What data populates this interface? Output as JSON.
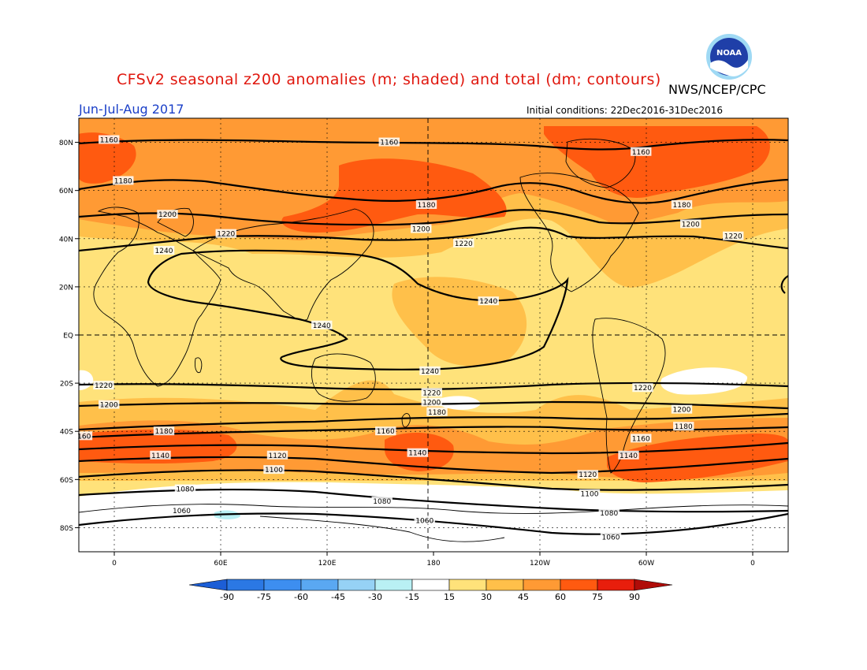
{
  "header": {
    "title": "CFSv2 seasonal z200 anomalies (m; shaded) and total (dm; contours)",
    "agency": "NWS/NCEP/CPC",
    "season": "Jun-Jul-Aug 2017",
    "initial_conditions": "Initial conditions: 22Dec2016-31Dec2016",
    "logo_text": "NOAA"
  },
  "map": {
    "lat_labels": [
      "80N",
      "60N",
      "40N",
      "20N",
      "EQ",
      "20S",
      "40S",
      "60S",
      "80S"
    ],
    "lat_values": [
      80,
      60,
      40,
      20,
      0,
      -20,
      -40,
      -60,
      -80
    ],
    "lon_labels": [
      "0",
      "60E",
      "120E",
      "180",
      "120W",
      "60W",
      "0"
    ],
    "lon_values": [
      0,
      60,
      120,
      180,
      240,
      300,
      360
    ],
    "lon_range": [
      -20,
      380
    ],
    "lat_range": [
      -90,
      90
    ],
    "contour_labels": [
      {
        "text": "1160",
        "lon": -3,
        "lat": 81
      },
      {
        "text": "1160",
        "lon": 155,
        "lat": 80
      },
      {
        "text": "1160",
        "lon": 297,
        "lat": 76
      },
      {
        "text": "1180",
        "lon": 5,
        "lat": 64
      },
      {
        "text": "1180",
        "lon": 176,
        "lat": 54
      },
      {
        "text": "1180",
        "lon": 320,
        "lat": 54
      },
      {
        "text": "1200",
        "lon": 30,
        "lat": 50
      },
      {
        "text": "1200",
        "lon": 173,
        "lat": 44
      },
      {
        "text": "1200",
        "lon": 325,
        "lat": 46
      },
      {
        "text": "1220",
        "lon": 63,
        "lat": 42
      },
      {
        "text": "1220",
        "lon": 197,
        "lat": 38
      },
      {
        "text": "1220",
        "lon": 349,
        "lat": 41
      },
      {
        "text": "1240",
        "lon": 28,
        "lat": 35
      },
      {
        "text": "1240",
        "lon": 211,
        "lat": 14
      },
      {
        "text": "1240",
        "lon": 117,
        "lat": 4
      },
      {
        "text": "1240",
        "lon": 178,
        "lat": -15
      },
      {
        "text": "1220",
        "lon": -6,
        "lat": -21
      },
      {
        "text": "1220",
        "lon": 179,
        "lat": -24
      },
      {
        "text": "1220",
        "lon": 298,
        "lat": -22
      },
      {
        "text": "1200",
        "lon": -3,
        "lat": -29
      },
      {
        "text": "1200",
        "lon": 179,
        "lat": -28
      },
      {
        "text": "1200",
        "lon": 320,
        "lat": -31
      },
      {
        "text": "1180",
        "lon": 182,
        "lat": -32
      },
      {
        "text": "1180",
        "lon": 28,
        "lat": -40
      },
      {
        "text": "1180",
        "lon": 321,
        "lat": -38
      },
      {
        "text": "1160",
        "lon": 153,
        "lat": -40
      },
      {
        "text": "1160",
        "lon": 297,
        "lat": -43
      },
      {
        "text": "160",
        "lon": -17,
        "lat": -42
      },
      {
        "text": "1140",
        "lon": 26,
        "lat": -50
      },
      {
        "text": "1140",
        "lon": 171,
        "lat": -49
      },
      {
        "text": "1140",
        "lon": 290,
        "lat": -50
      },
      {
        "text": "1120",
        "lon": 92,
        "lat": -50
      },
      {
        "text": "1120",
        "lon": 267,
        "lat": -58
      },
      {
        "text": "1100",
        "lon": 90,
        "lat": -56
      },
      {
        "text": "1100",
        "lon": 268,
        "lat": -66
      },
      {
        "text": "1080",
        "lon": 40,
        "lat": -64
      },
      {
        "text": "1080",
        "lon": 151,
        "lat": -69
      },
      {
        "text": "1080",
        "lon": 279,
        "lat": -74
      },
      {
        "text": "1060",
        "lon": 38,
        "lat": -73
      },
      {
        "text": "1060",
        "lon": 175,
        "lat": -77
      },
      {
        "text": "1060",
        "lon": 280,
        "lat": -84
      }
    ]
  },
  "colorbar": {
    "labels": [
      "-90",
      "-75",
      "-60",
      "-45",
      "-30",
      "-15",
      "15",
      "30",
      "45",
      "60",
      "75",
      "90"
    ],
    "colors": [
      "#1c5ed6",
      "#2b78e4",
      "#3d8ef0",
      "#5aa8f2",
      "#96d2f5",
      "#b9f0f4",
      "#ffffff",
      "#ffe27a",
      "#ffc04a",
      "#ff9a34",
      "#ff5a10",
      "#e81e0c",
      "#b00c08"
    ]
  },
  "colors": {
    "anom_15_30": "#ffe27a",
    "anom_30_45": "#ffc04a",
    "anom_45_60": "#ff9a34",
    "anom_60_75": "#ff5a10",
    "anom_neg15_neg30": "#b9f0f4"
  }
}
